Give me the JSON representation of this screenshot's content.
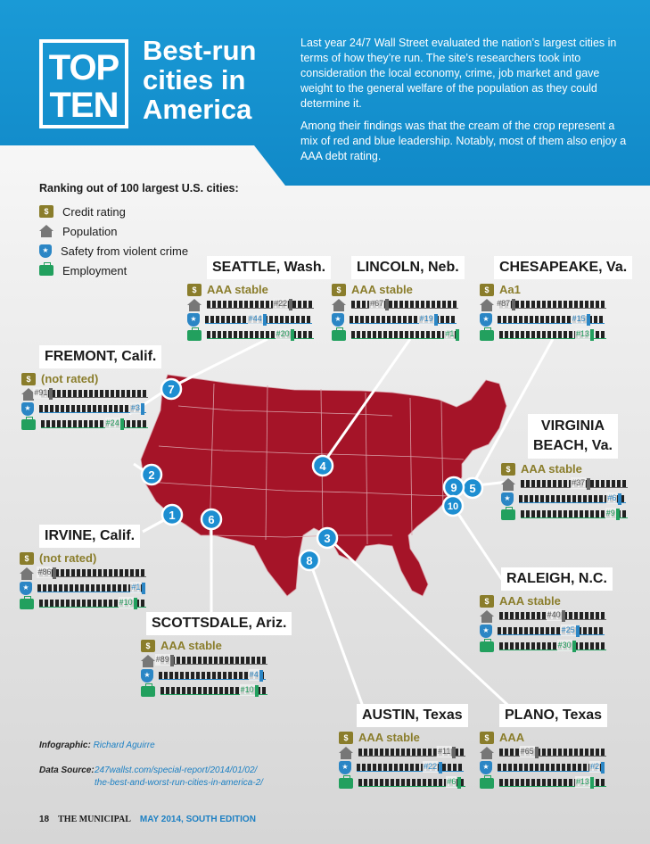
{
  "header": {
    "badge_line1": "TOP",
    "badge_line2": "TEN",
    "headline_line1": "Best-run",
    "headline_line2": "cities in",
    "headline_line3": "America",
    "intro_p1": "Last year 24/7 Wall Street evaluated the nation’s largest cities in terms of how they’re run. The site’s researchers took into consideration the local economy, crime, job market and gave weight to the general welfare of the population as they could determine it.",
    "intro_p2": "Among their findings was that the cream of the crop represent a mix of red and blue leadership. Notably, most of them also enjoy a AAA debt rating."
  },
  "legend": {
    "title": "Ranking out of 100 largest U.S. cities:",
    "items": [
      {
        "icon": "credit-icon",
        "label": "Credit rating"
      },
      {
        "icon": "house-icon",
        "label": "Population"
      },
      {
        "icon": "shield-icon",
        "label": "Safety from violent crime"
      },
      {
        "icon": "briefcase-icon",
        "label": "Employment"
      }
    ]
  },
  "cities": [
    {
      "rank": "1",
      "name": "IRVINE, Calif.",
      "credit": "(not rated)",
      "population": 86,
      "safety": 1,
      "employment": 10,
      "pop_label": "#86",
      "safe_label": "#1",
      "emp_label": "#10"
    },
    {
      "rank": "2",
      "name": "FREMONT, Calif.",
      "credit": "(not rated)",
      "population": 91,
      "safety": 3,
      "employment": 24,
      "pop_label": "#91",
      "safe_label": "#3",
      "emp_label": "#24"
    },
    {
      "rank": "3",
      "name": "PLANO, Texas",
      "credit": "AAA",
      "population": 65,
      "safety": 2,
      "employment": 13,
      "pop_label": "#65",
      "safe_label": "#2",
      "emp_label": "#13"
    },
    {
      "rank": "4",
      "name": "LINCOLN, Neb.",
      "credit": "AAA stable",
      "population": 67,
      "safety": 19,
      "employment": 1,
      "pop_label": "#67",
      "safe_label": "#19",
      "emp_label": "#1"
    },
    {
      "rank": "5",
      "name_line1": "VIRGINIA",
      "name_line2": "BEACH, Va.",
      "credit": "AAA stable",
      "population": 37,
      "safety": 6,
      "employment": 9,
      "pop_label": "#37",
      "safe_label": "#6",
      "emp_label": "#9"
    },
    {
      "rank": "6",
      "name": "SCOTTSDALE, Ariz.",
      "credit": "AAA stable",
      "population": 89,
      "safety": 4,
      "employment": 10,
      "pop_label": "#89",
      "safe_label": "#4",
      "emp_label": "#10"
    },
    {
      "rank": "7",
      "name": "SEATTLE, Wash.",
      "credit": "AAA stable",
      "population": 22,
      "safety": 44,
      "employment": 20,
      "pop_label": "#22",
      "safe_label": "#44",
      "emp_label": "#20"
    },
    {
      "rank": "8",
      "name": "AUSTIN, Texas",
      "credit": "AAA stable",
      "population": 11,
      "safety": 22,
      "employment": 6,
      "pop_label": "#11",
      "safe_label": "#22",
      "emp_label": "#6"
    },
    {
      "rank": "9",
      "name": "CHESAPEAKE, Va.",
      "credit": "Aa1",
      "population": 87,
      "safety": 15,
      "employment": 13,
      "pop_label": "#87",
      "safe_label": "#15",
      "emp_label": "#13"
    },
    {
      "rank": "10",
      "name": "RALEIGH, N.C.",
      "credit": "AAA stable",
      "population": 40,
      "safety": 25,
      "employment": 30,
      "pop_label": "#40",
      "safe_label": "#25",
      "emp_label": "#30"
    }
  ],
  "credits": {
    "infographic_label": "Infographic:",
    "infographic_value": "Richard Aguirre",
    "source_label": "Data Source:",
    "source_line1": "247wallst.com/special-report/2014/01/02/",
    "source_line2": "the-best-and-worst-run-cities-in-america-2/"
  },
  "footer": {
    "page": "18",
    "magazine": "THE MUNICIPAL",
    "edition": "MAY 2014, SOUTH EDITION"
  },
  "colors": {
    "header_blue": "#1a9ad6",
    "map_red": "#a51428",
    "credit_gold": "#8a7d2b",
    "safety_blue": "#2b86c5",
    "employment_green": "#22a05e",
    "population_gray": "#666666"
  }
}
